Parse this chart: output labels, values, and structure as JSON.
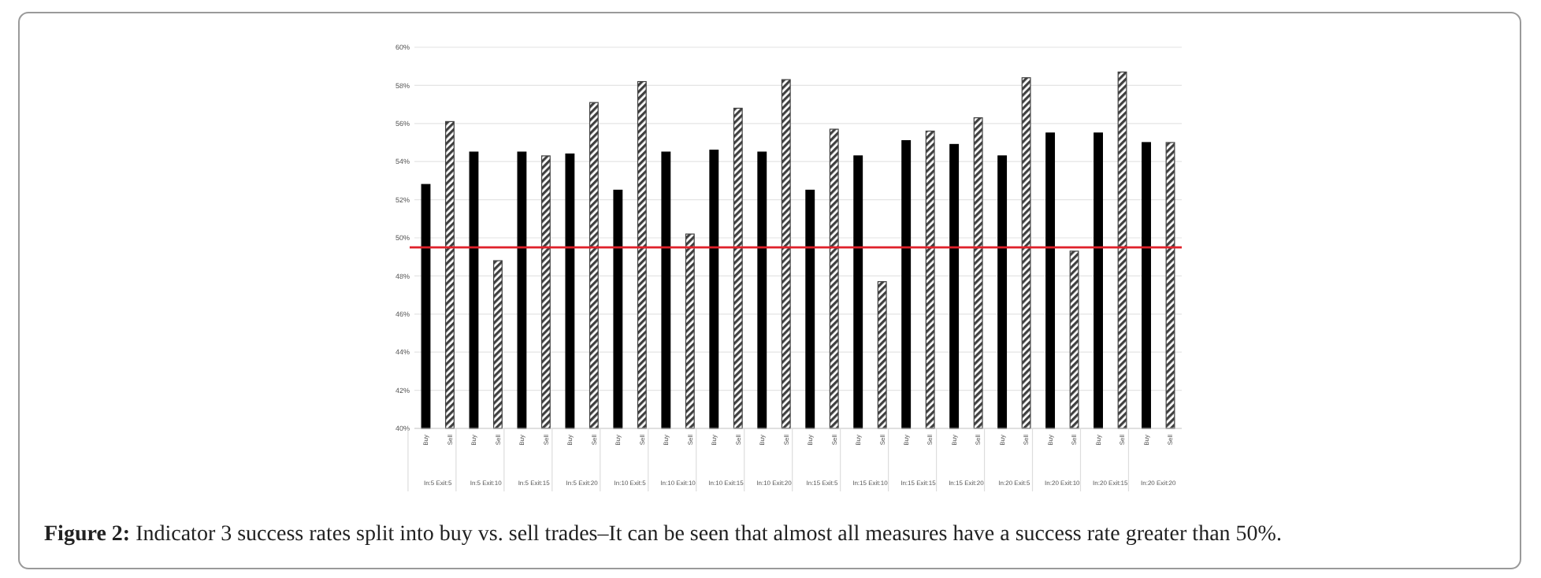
{
  "chart_data": {
    "type": "bar",
    "categories": [
      "Buy",
      "Sell",
      "Buy",
      "Sell",
      "Buy",
      "Sell",
      "Buy",
      "Sell",
      "Buy",
      "Sell",
      "Buy",
      "Sell",
      "Buy",
      "Sell",
      "Buy",
      "Sell",
      "Buy",
      "Sell",
      "Buy",
      "Sell",
      "Buy",
      "Sell",
      "Buy",
      "Sell",
      "Buy",
      "Sell",
      "Buy",
      "Sell",
      "Buy",
      "Sell",
      "Buy",
      "Sell"
    ],
    "series": [
      {
        "color": "#000000",
        "values": [
          52.8,
          null,
          54.5,
          null,
          54.5,
          null,
          54.4,
          null,
          52.5,
          null,
          54.5,
          null,
          54.6,
          null,
          54.5,
          null,
          52.5,
          null,
          54.3,
          null,
          55.1,
          null,
          54.9,
          null,
          54.3,
          null,
          55.5,
          null,
          55.5,
          null,
          55.0,
          null
        ]
      },
      {
        "color": "#404040",
        "values": [
          null,
          56.1,
          null,
          48.8,
          null,
          54.3,
          null,
          57.1,
          null,
          58.2,
          null,
          50.2,
          null,
          56.8,
          null,
          58.3,
          null,
          55.7,
          null,
          47.7,
          null,
          55.6,
          null,
          56.3,
          null,
          58.4,
          null,
          49.3,
          null,
          58.7,
          null,
          55.0
        ]
      }
    ],
    "ylim": [
      40,
      60
    ],
    "yticks": [
      {
        "value": 40,
        "label": "40%"
      },
      {
        "value": 42,
        "label": "42%"
      },
      {
        "value": 44,
        "label": "44%"
      },
      {
        "value": 46,
        "label": "46%"
      },
      {
        "value": 48,
        "label": "48%"
      },
      {
        "value": 50,
        "label": "50%"
      },
      {
        "value": 52,
        "label": "52%"
      },
      {
        "value": 54,
        "label": "54%"
      },
      {
        "value": 56,
        "label": "56%"
      },
      {
        "value": 58,
        "label": "58%"
      },
      {
        "value": 60,
        "label": "60%"
      }
    ],
    "grid": "y",
    "ref_lines": [
      {
        "axis": "y",
        "value": 49.5,
        "color": "#e0202a"
      }
    ],
    "annotations": [
      "In:5 Exit:5",
      "In:5 Exit:10",
      "In:5 Exit:15",
      "In:5 Exit:20",
      "In:10 Exit:5",
      "In:10 Exit:10",
      "In:10 Exit:15",
      "In:10 Exit:20",
      "In:15 Exit:5",
      "In:15 Exit:10",
      "In:15 Exit:15",
      "In:15 Exit:20",
      "In:20 Exit:5",
      "In:20 Exit:10",
      "In:20 Exit:15",
      "In:20 Exit:20",
      "Figure 2: Indicator 3 success rates split into buy vs. sell trades–It can be seen that almost all measures have a success rate greater than 50%."
    ]
  }
}
